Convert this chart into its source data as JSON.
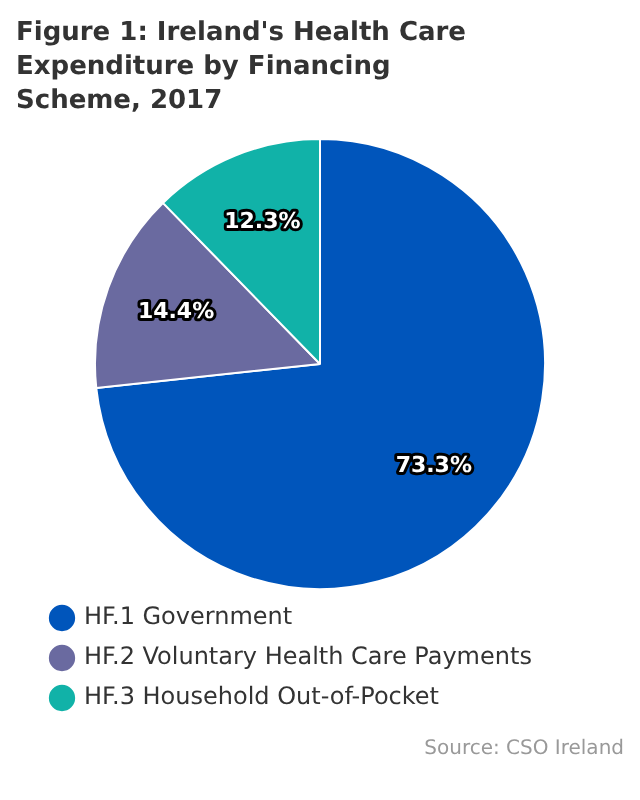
{
  "chart_data": {
    "type": "pie",
    "title": "Figure 1: Ireland's Health Care Expenditure by Financing Scheme, 2017",
    "categories": [
      "HF.1 Government",
      "HF.2 Voluntary Health Care Payments",
      "HF.3 Household Out-of-Pocket"
    ],
    "values": [
      73.3,
      14.4,
      12.3
    ],
    "value_labels": [
      "73.3%",
      "14.4%",
      "12.3%"
    ],
    "colors": [
      "#0055bb",
      "#6a6aa0",
      "#11b2a8"
    ],
    "legend": "bottom",
    "annotations": [
      "Source: CSO Ireland"
    ]
  }
}
